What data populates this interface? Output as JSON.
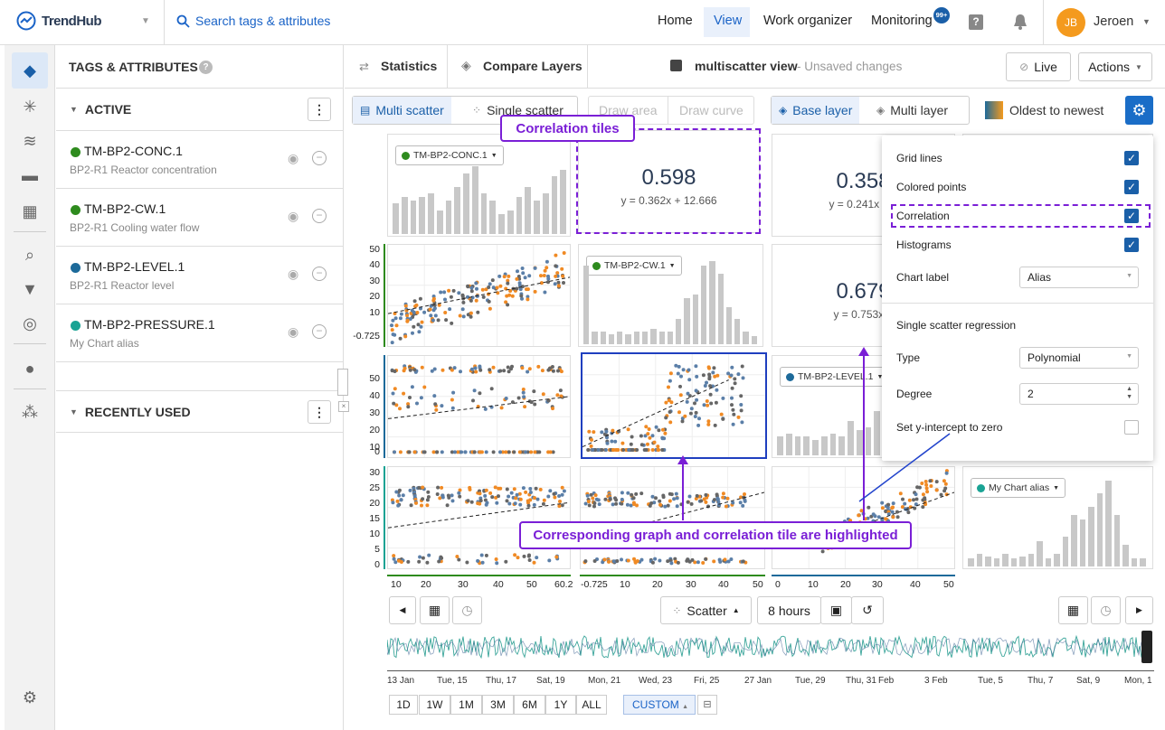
{
  "app": {
    "name": "TrendHub"
  },
  "search": {
    "placeholder": "Search tags & attributes"
  },
  "nav": {
    "home": "Home",
    "view": "View",
    "work": "Work organizer",
    "monitoring": "Monitoring",
    "badge": "99+"
  },
  "user": {
    "initials": "JB",
    "name": "Jeroen"
  },
  "panel": {
    "title": "TAGS & ATTRIBUTES",
    "active_label": "ACTIVE",
    "recent_label": "RECENTLY USED",
    "tags": [
      {
        "name": "TM-BP2-CONC.1",
        "desc": "BP2-R1 Reactor concentration",
        "color": "#2e8b1e"
      },
      {
        "name": "TM-BP2-CW.1",
        "desc": "BP2-R1 Cooling water flow",
        "color": "#2e8b1e"
      },
      {
        "name": "TM-BP2-LEVEL.1",
        "desc": "BP2-R1 Reactor level",
        "color": "#1d6a9a"
      },
      {
        "name": "TM-BP2-PRESSURE.1",
        "desc": "My Chart alias",
        "color": "#1aa394"
      }
    ]
  },
  "toolbar": {
    "statistics": "Statistics",
    "compare": "Compare Layers",
    "view_name": "multiscatter view",
    "unsaved": "- Unsaved changes",
    "live": "Live",
    "actions": "Actions",
    "multi_scatter": "Multi scatter",
    "single_scatter": "Single scatter",
    "draw_area": "Draw area",
    "draw_curve": "Draw curve",
    "base_layer": "Base layer",
    "multi_layer": "Multi layer",
    "order": "Oldest to newest"
  },
  "tiles": {
    "corr1": {
      "value": "0.598",
      "eq": "y = 0.362x + 12.666"
    },
    "corr2": {
      "value": "0.358",
      "eq": "y = 0.241x + 1"
    },
    "corr3": {
      "value": "0.679",
      "eq": "y = 0.753x +"
    },
    "pills": [
      "TM-BP2-CONC.1",
      "TM-BP2-CW.1",
      "TM-BP2-LEVEL.1",
      "My Chart alias"
    ]
  },
  "axes": {
    "y_row1": [
      "50",
      "40",
      "30",
      "20",
      "10",
      "-0.725"
    ],
    "y_row2": [
      "50",
      "40",
      "30",
      "20",
      "10",
      "0"
    ],
    "y_row3": [
      "30",
      "25",
      "20",
      "15",
      "10",
      "5",
      "0"
    ],
    "x_col1": [
      "10",
      "20",
      "30",
      "40",
      "50",
      "60.2"
    ],
    "x_col2": [
      "-0.725",
      "10",
      "20",
      "30",
      "40",
      "50"
    ],
    "x_col3": [
      "0",
      "10",
      "20",
      "30",
      "40",
      "50"
    ]
  },
  "settings": {
    "grid_lines": "Grid lines",
    "colored_points": "Colored points",
    "correlation": "Correlation",
    "histograms": "Histograms",
    "chart_label": "Chart label",
    "chart_label_value": "Alias",
    "regression_title": "Single scatter regression",
    "type": "Type",
    "type_value": "Polynomial",
    "degree": "Degree",
    "degree_value": "2",
    "intercept": "Set y-intercept to zero"
  },
  "callouts": {
    "corr_tiles": "Correlation tiles",
    "highlight": "Corresponding graph and correlation tile are highlighted"
  },
  "timebar": {
    "chart_type": "Scatter",
    "duration": "8 hours",
    "dates": [
      "13 Jan",
      "Tue, 15",
      "Thu, 17",
      "Sat, 19",
      "Mon, 21",
      "Wed, 23",
      "Fri, 25",
      "27 Jan",
      "Tue, 29",
      "Thu, 31",
      "Feb",
      "3 Feb",
      "Tue, 5",
      "Thu, 7",
      "Sat, 9",
      "Mon, 1"
    ],
    "ranges": [
      "1D",
      "1W",
      "1M",
      "3M",
      "6M",
      "1Y",
      "ALL"
    ],
    "custom": "CUSTOM"
  }
}
